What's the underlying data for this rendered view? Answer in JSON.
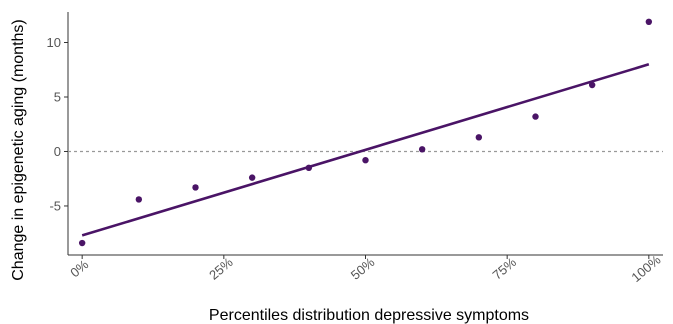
{
  "chart_data": {
    "type": "scatter",
    "xlabel": "Percentiles distribution depressive symptoms",
    "ylabel": "Change in epigenetic aging (months)",
    "x_ticks": [
      0,
      25,
      50,
      75,
      100
    ],
    "x_tick_labels": [
      "0%",
      "25%",
      "50%",
      "75%",
      "100%"
    ],
    "y_ticks": [
      -5,
      0,
      5,
      10
    ],
    "y_tick_labels": [
      "-5",
      "0",
      "5",
      "10"
    ],
    "xlim": [
      -2.5,
      102.5
    ],
    "ylim": [
      -9.5,
      12.8
    ],
    "points": [
      {
        "x": 0,
        "y": -8.4
      },
      {
        "x": 10,
        "y": -4.4
      },
      {
        "x": 20,
        "y": -3.3
      },
      {
        "x": 30,
        "y": -2.4
      },
      {
        "x": 40,
        "y": -1.5
      },
      {
        "x": 50,
        "y": -0.8
      },
      {
        "x": 60,
        "y": 0.2
      },
      {
        "x": 70,
        "y": 1.3
      },
      {
        "x": 80,
        "y": 3.2
      },
      {
        "x": 90,
        "y": 6.1
      },
      {
        "x": 100,
        "y": 11.9
      }
    ],
    "fit_line": {
      "x": [
        0,
        100
      ],
      "y": [
        -7.7,
        8.0
      ]
    },
    "reference_line": {
      "y": 0,
      "style": "dotted"
    },
    "colors": {
      "series": "#4a1466",
      "reference": "#999999",
      "axis": "#333333"
    },
    "grid": false
  }
}
